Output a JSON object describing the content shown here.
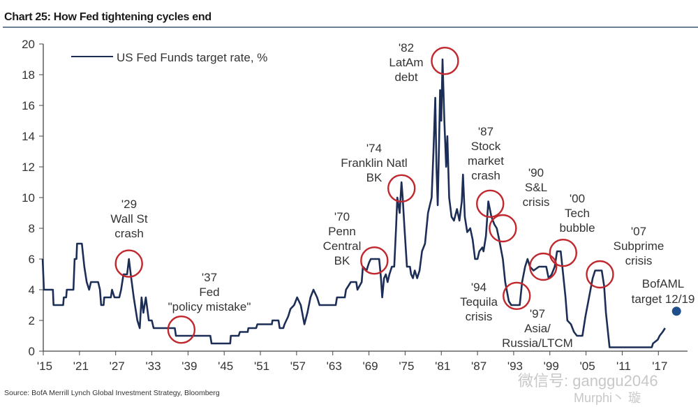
{
  "title": "Chart 25: How Fed tightening cycles end",
  "source": "Source:  BofA Merrill Lynch Global Investment Strategy, Bloomberg",
  "watermark": {
    "line1": "微信号: ganggu2046",
    "line2": "Murphi丶 璇"
  },
  "chart_data": {
    "type": "line",
    "title": "Chart 25: How Fed tightening cycles end",
    "xlabel": "",
    "ylabel": "",
    "xlim": [
      1915,
      2021
    ],
    "ylim": [
      0,
      20
    ],
    "yticks": [
      0,
      2,
      4,
      6,
      8,
      10,
      12,
      14,
      16,
      18,
      20
    ],
    "xtick_labels": [
      "'15",
      "'21",
      "'27",
      "'33",
      "'39",
      "'45",
      "'51",
      "'57",
      "'63",
      "'69",
      "'75",
      "'81",
      "'87",
      "'93",
      "'99",
      "'05",
      "'11",
      "'17"
    ],
    "xtick_years": [
      1915,
      1921,
      1927,
      1933,
      1939,
      1945,
      1951,
      1957,
      1963,
      1969,
      1975,
      1981,
      1987,
      1993,
      1999,
      2005,
      2011,
      2017
    ],
    "grid": false,
    "legend": {
      "placement": "top-left",
      "entries": [
        "US Fed Funds target rate, %"
      ]
    },
    "colors": {
      "line": "#1c2e55",
      "circle": "#c0282d",
      "target_dot": "#1f4e8c"
    },
    "series": [
      {
        "name": "US Fed Funds target rate, %",
        "points": [
          [
            1914.9,
            6
          ],
          [
            1915.0,
            5
          ],
          [
            1915.1,
            4
          ],
          [
            1916.6,
            4
          ],
          [
            1916.7,
            3
          ],
          [
            1918.3,
            3
          ],
          [
            1918.4,
            3.5
          ],
          [
            1918.8,
            3.5
          ],
          [
            1918.9,
            4
          ],
          [
            1920.0,
            4
          ],
          [
            1920.2,
            6
          ],
          [
            1920.5,
            6
          ],
          [
            1920.6,
            7
          ],
          [
            1921.4,
            7
          ],
          [
            1921.8,
            5.5
          ],
          [
            1922.2,
            4.5
          ],
          [
            1922.6,
            4
          ],
          [
            1922.9,
            4.5
          ],
          [
            1924.1,
            4.5
          ],
          [
            1924.4,
            4
          ],
          [
            1924.6,
            3
          ],
          [
            1925.0,
            3
          ],
          [
            1925.1,
            3.5
          ],
          [
            1926.2,
            3.5
          ],
          [
            1926.4,
            4
          ],
          [
            1926.8,
            3.5
          ],
          [
            1927.6,
            3.5
          ],
          [
            1927.9,
            4
          ],
          [
            1928.3,
            5
          ],
          [
            1928.9,
            5
          ],
          [
            1929.2,
            6
          ],
          [
            1929.5,
            5
          ],
          [
            1930.0,
            3.5
          ],
          [
            1930.6,
            2
          ],
          [
            1931.0,
            1.5
          ],
          [
            1931.3,
            3.5
          ],
          [
            1931.6,
            2.5
          ],
          [
            1932.0,
            3.5
          ],
          [
            1932.5,
            2
          ],
          [
            1933.0,
            2
          ],
          [
            1933.3,
            1.5
          ],
          [
            1936.8,
            1.5
          ],
          [
            1937.0,
            1
          ],
          [
            1942.7,
            1
          ],
          [
            1942.9,
            0.5
          ],
          [
            1946.0,
            0.5
          ],
          [
            1946.1,
            1
          ],
          [
            1947.4,
            1
          ],
          [
            1947.6,
            1.25
          ],
          [
            1948.9,
            1.25
          ],
          [
            1949.0,
            1.5
          ],
          [
            1950.3,
            1.5
          ],
          [
            1950.5,
            1.75
          ],
          [
            1952.9,
            1.75
          ],
          [
            1953.0,
            2
          ],
          [
            1954.0,
            2
          ],
          [
            1954.2,
            1.5
          ],
          [
            1954.8,
            1.5
          ],
          [
            1955.0,
            1.75
          ],
          [
            1955.6,
            2.25
          ],
          [
            1956.0,
            2.75
          ],
          [
            1956.6,
            3
          ],
          [
            1957.1,
            3.5
          ],
          [
            1957.7,
            3
          ],
          [
            1958.3,
            1.75
          ],
          [
            1958.8,
            2.5
          ],
          [
            1959.3,
            3.5
          ],
          [
            1959.8,
            4
          ],
          [
            1960.4,
            3.5
          ],
          [
            1960.8,
            3
          ],
          [
            1963.5,
            3
          ],
          [
            1963.7,
            3.5
          ],
          [
            1965.0,
            3.5
          ],
          [
            1965.2,
            4
          ],
          [
            1966.0,
            4.5
          ],
          [
            1966.9,
            4.5
          ],
          [
            1967.1,
            4
          ],
          [
            1967.8,
            4.5
          ],
          [
            1968.0,
            5.5
          ],
          [
            1968.6,
            5.25
          ],
          [
            1969.0,
            5.75
          ],
          [
            1969.3,
            6
          ],
          [
            1970.7,
            6
          ],
          [
            1971.0,
            4.75
          ],
          [
            1971.2,
            3.5
          ],
          [
            1971.5,
            4.75
          ],
          [
            1971.8,
            5
          ],
          [
            1972.1,
            4.5
          ],
          [
            1972.4,
            5
          ],
          [
            1972.8,
            5.5
          ],
          [
            1973.2,
            5.5
          ],
          [
            1973.5,
            8
          ],
          [
            1973.7,
            10
          ],
          [
            1974.1,
            9
          ],
          [
            1974.4,
            11
          ],
          [
            1974.6,
            10
          ],
          [
            1974.9,
            8
          ],
          [
            1975.3,
            5.5
          ],
          [
            1975.8,
            5.5
          ],
          [
            1976.0,
            5
          ],
          [
            1976.3,
            4.75
          ],
          [
            1976.6,
            5.25
          ],
          [
            1977.0,
            4.75
          ],
          [
            1977.4,
            5.25
          ],
          [
            1977.8,
            6.5
          ],
          [
            1978.3,
            7
          ],
          [
            1978.8,
            9
          ],
          [
            1979.4,
            10
          ],
          [
            1979.7,
            13
          ],
          [
            1980.0,
            16.5
          ],
          [
            1980.2,
            12
          ],
          [
            1980.4,
            9.5
          ],
          [
            1980.6,
            13
          ],
          [
            1980.8,
            17
          ],
          [
            1981.0,
            15
          ],
          [
            1981.2,
            19
          ],
          [
            1981.5,
            15
          ],
          [
            1981.8,
            12
          ],
          [
            1982.0,
            14
          ],
          [
            1982.3,
            10
          ],
          [
            1982.7,
            8.75
          ],
          [
            1983.1,
            8.5
          ],
          [
            1983.6,
            9.25
          ],
          [
            1984.0,
            8.5
          ],
          [
            1984.4,
            9.75
          ],
          [
            1984.6,
            11.5
          ],
          [
            1984.9,
            8.75
          ],
          [
            1985.3,
            7.75
          ],
          [
            1985.8,
            8
          ],
          [
            1986.2,
            7.25
          ],
          [
            1986.6,
            6
          ],
          [
            1987.0,
            6
          ],
          [
            1987.3,
            6.5
          ],
          [
            1987.8,
            6.75
          ],
          [
            1988.0,
            6.5
          ],
          [
            1988.4,
            7.5
          ],
          [
            1988.8,
            9.75
          ],
          [
            1989.3,
            8.75
          ],
          [
            1989.8,
            8.25
          ],
          [
            1990.2,
            8
          ],
          [
            1990.6,
            7.25
          ],
          [
            1991.2,
            6
          ],
          [
            1991.6,
            4.5
          ],
          [
            1992.2,
            3.25
          ],
          [
            1992.6,
            3
          ],
          [
            1994.0,
            3
          ],
          [
            1994.4,
            4.5
          ],
          [
            1994.9,
            5.5
          ],
          [
            1995.3,
            6
          ],
          [
            1995.7,
            5.5
          ],
          [
            1996.3,
            5.25
          ],
          [
            1997.2,
            5.5
          ],
          [
            1998.4,
            5.5
          ],
          [
            1998.8,
            4.75
          ],
          [
            1999.3,
            5
          ],
          [
            1999.8,
            5.5
          ],
          [
            2000.2,
            6.5
          ],
          [
            2000.8,
            6.5
          ],
          [
            2001.2,
            5
          ],
          [
            2001.6,
            3.5
          ],
          [
            2001.9,
            2
          ],
          [
            2002.5,
            1.75
          ],
          [
            2003.0,
            1.25
          ],
          [
            2003.5,
            1
          ],
          [
            2004.4,
            1
          ],
          [
            2004.9,
            2.25
          ],
          [
            2005.5,
            3.5
          ],
          [
            2006.1,
            4.75
          ],
          [
            2006.5,
            5.25
          ],
          [
            2007.6,
            5.25
          ],
          [
            2008.0,
            4.25
          ],
          [
            2008.3,
            2.5
          ],
          [
            2008.9,
            0.25
          ],
          [
            2015.9,
            0.25
          ],
          [
            2016.1,
            0.5
          ],
          [
            2016.9,
            0.75
          ],
          [
            2017.2,
            1
          ],
          [
            2017.7,
            1.25
          ],
          [
            2018.1,
            1.5
          ]
        ]
      }
    ],
    "target_point": {
      "label": [
        "BofAML",
        "target 12/19"
      ],
      "year": 2020.0,
      "value": 2.6
    },
    "annotations": [
      {
        "lines": [
          "'29",
          "Wall St",
          "crash"
        ],
        "circle_year": 1929.2,
        "circle_value": 5.7
      },
      {
        "lines": [
          "'37",
          "Fed",
          "\"policy mistake\""
        ],
        "circle_year": 1937.9,
        "circle_value": 1.4
      },
      {
        "lines": [
          "'70",
          "Penn",
          "Central",
          "BK"
        ],
        "circle_year": 1969.9,
        "circle_value": 5.9
      },
      {
        "lines": [
          "'74",
          "Franklin Natl",
          "BK"
        ],
        "circle_year": 1974.4,
        "circle_value": 10.6
      },
      {
        "lines": [
          "'82",
          "LatAm",
          "debt"
        ],
        "circle_year": 1981.6,
        "circle_value": 18.9
      },
      {
        "lines": [
          "'87",
          "Stock",
          "market",
          "crash"
        ],
        "circle_year": 1989.1,
        "circle_value": 9.6
      },
      {
        "lines": [
          "'90",
          "S&L",
          "crisis"
        ],
        "circle_year": 1991.2,
        "circle_value": 8.0
      },
      {
        "lines": [
          "'94",
          "Tequila",
          "crisis"
        ],
        "circle_year": 1993.5,
        "circle_value": 3.6
      },
      {
        "lines": [
          "'97",
          "Asia/",
          "Russia/LTCM"
        ],
        "circle_year": 1997.9,
        "circle_value": 5.5
      },
      {
        "lines": [
          "'00",
          "Tech",
          "bubble"
        ],
        "circle_year": 2001.2,
        "circle_value": 6.4
      },
      {
        "lines": [
          "'07",
          "Subprime",
          "crisis"
        ],
        "circle_year": 2007.3,
        "circle_value": 5.0
      }
    ]
  }
}
